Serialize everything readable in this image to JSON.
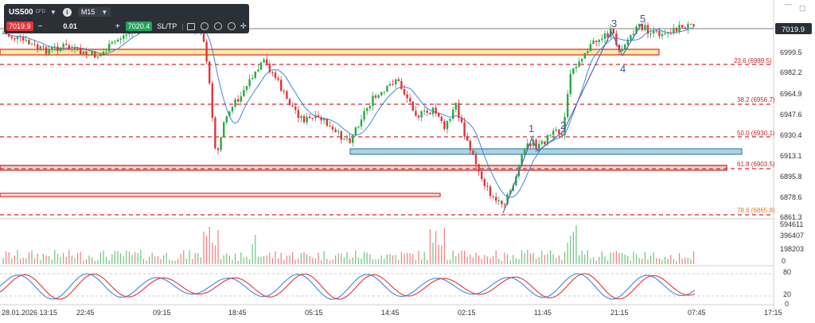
{
  "toolbar": {
    "symbol": "US500",
    "symbol_type": "CFD",
    "timeframe": "M15",
    "sell_price": "7019.9",
    "minus": "−",
    "lot_size": "0.01",
    "plus": "+",
    "buy_price": "7020.4",
    "sltp": "SL/TP"
  },
  "window": {
    "minimize": "—",
    "restore": "▢"
  },
  "price_axis": {
    "current_price": "7019.9",
    "labels": [
      "6999.5",
      "6982.2",
      "6964.9",
      "6947.6",
      "6930.4",
      "6913.1",
      "6895.8",
      "6878.6",
      "6861.3"
    ]
  },
  "volume_axis": {
    "labels": [
      "594611",
      "396407",
      "198203",
      "0"
    ]
  },
  "osc_axis": {
    "labels": [
      "80",
      "20",
      "0"
    ]
  },
  "time_axis": {
    "labels": [
      "28.01.2026 13:15",
      "22:45",
      "09:15",
      "18:45",
      "05:15",
      "14:45",
      "02:15",
      "11:45",
      "21:15",
      "07:45",
      "17:15"
    ]
  },
  "fib_levels": [
    "23.6 (6989.5)",
    "38.2 (6956.7)",
    "50.0 (6930.1)",
    "61.8 (6903.5)",
    "78.6 (6865.8)"
  ],
  "wave_labels": [
    "1",
    "2",
    "3",
    "4",
    "5"
  ],
  "colors": {
    "up": "#29a847",
    "down": "#e0353b",
    "fib": "#d9262c",
    "ma": "#3f87d8",
    "wave": "#5a5ca8",
    "zone_blue": "#a9d4e8",
    "zone_yellow": "#f9e9a3",
    "sell": "#e0353b",
    "buy": "#1fa35a"
  }
}
